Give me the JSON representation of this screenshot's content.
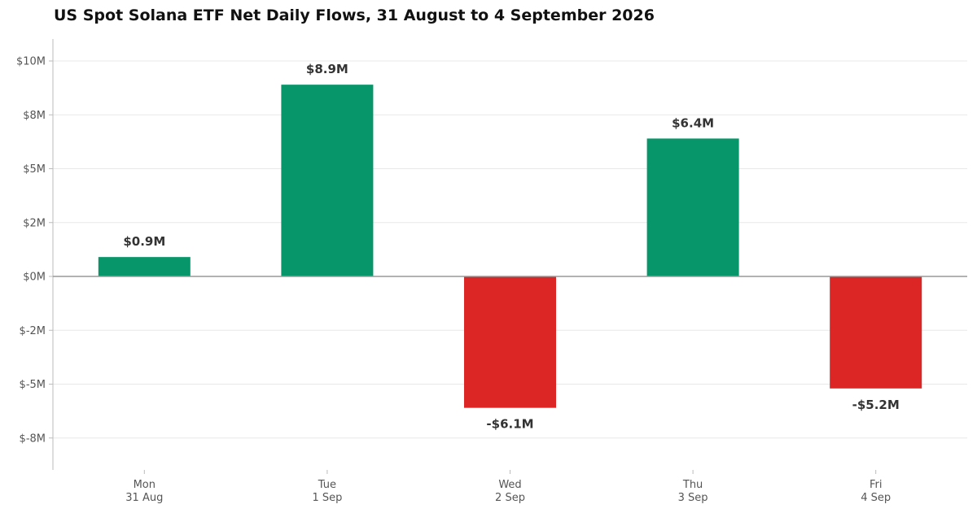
{
  "chart_data": {
    "type": "bar",
    "title": "US Spot Solana ETF Net Daily Flows, 31 August to 4 September 2026",
    "xlabel": "",
    "ylabel": "",
    "categories": [
      [
        "Mon",
        "31 Aug"
      ],
      [
        "Tue",
        "1 Sep"
      ],
      [
        "Wed",
        "2 Sep"
      ],
      [
        "Thu",
        "3 Sep"
      ],
      [
        "Fri",
        "4 Sep"
      ]
    ],
    "values": [
      0.9,
      8.9,
      -6.1,
      6.4,
      -5.2
    ],
    "value_labels": [
      "$0.9M",
      "$8.9M",
      "-$6.1M",
      "$6.4M",
      "-$5.2M"
    ],
    "y_ticks": [
      10,
      7.5,
      5,
      2.5,
      0,
      -2.5,
      -5,
      -7.5
    ],
    "y_tick_labels": [
      "$10M",
      "$8M",
      "$5M",
      "$2M",
      "$0M",
      "$-2M",
      "$-5M",
      "$-8M"
    ],
    "ylim": [
      -9,
      11
    ],
    "grid": true,
    "legend": "none",
    "colors": {
      "positive": "#069669",
      "negative": "#dc2626",
      "grid": "#e8e8e8",
      "zero_line": "#999999",
      "axis": "#bbbbbb"
    }
  }
}
